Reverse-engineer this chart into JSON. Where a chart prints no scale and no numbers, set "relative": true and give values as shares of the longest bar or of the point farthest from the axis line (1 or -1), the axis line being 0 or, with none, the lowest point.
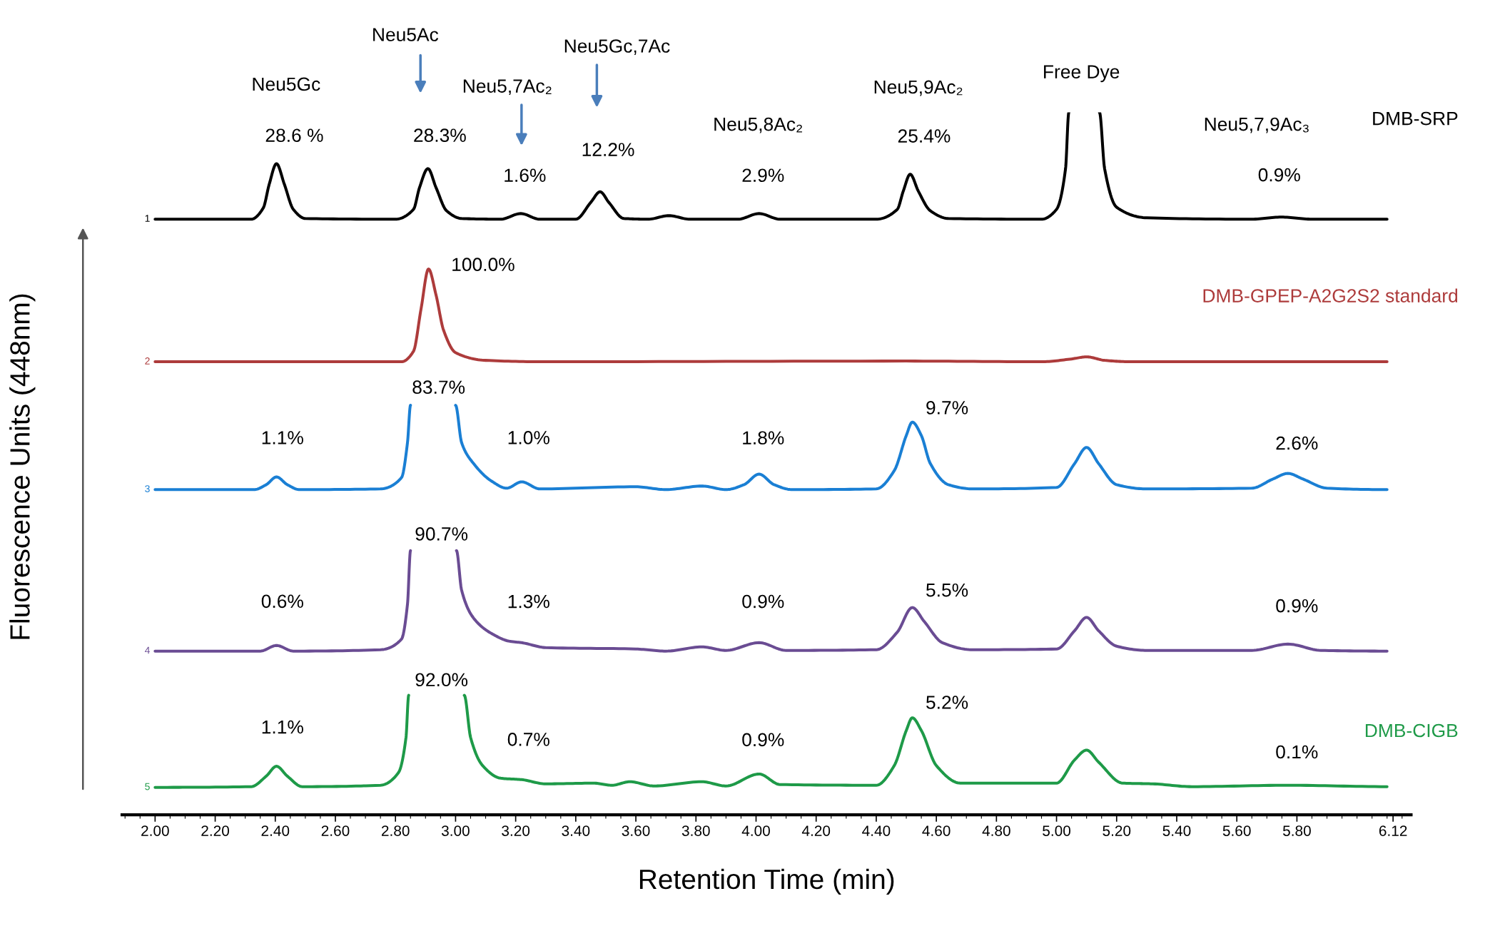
{
  "chart_data": {
    "type": "line",
    "relative": true,
    "xlabel": "Retention Time (min)",
    "ylabel": "Fluorescence Units (448nm)",
    "xlim": [
      1.89,
      6.18
    ],
    "xticks": [
      {
        "value": 2.0,
        "label": "2.00"
      },
      {
        "value": 2.2,
        "label": "2.20"
      },
      {
        "value": 2.4,
        "label": "2.40"
      },
      {
        "value": 2.6,
        "label": "2.60"
      },
      {
        "value": 2.8,
        "label": "2.80"
      },
      {
        "value": 3.0,
        "label": "3.00"
      },
      {
        "value": 3.2,
        "label": "3.20"
      },
      {
        "value": 3.4,
        "label": "3.40"
      },
      {
        "value": 3.6,
        "label": "3.60"
      },
      {
        "value": 3.8,
        "label": "3.80"
      },
      {
        "value": 4.0,
        "label": "4.00"
      },
      {
        "value": 4.2,
        "label": "4.20"
      },
      {
        "value": 4.4,
        "label": "4.40"
      },
      {
        "value": 4.6,
        "label": "4.60"
      },
      {
        "value": 4.8,
        "label": "4.80"
      },
      {
        "value": 5.0,
        "label": "5.00"
      },
      {
        "value": 5.2,
        "label": "5.20"
      },
      {
        "value": 5.4,
        "label": "5.40"
      },
      {
        "value": 5.6,
        "label": "5.60"
      },
      {
        "value": 5.8,
        "label": "5.80"
      },
      6.12
    ],
    "grid": false,
    "marker": "none",
    "line_style": "solid",
    "tick_labels": "x",
    "series": [
      {
        "name": "DMB-SRP",
        "color": "#000000",
        "x": [
          2.0,
          2.32,
          2.36,
          2.38,
          2.404,
          2.43,
          2.46,
          2.5,
          2.8,
          2.86,
          2.88,
          2.908,
          2.935,
          2.97,
          3.02,
          3.15,
          3.217,
          3.28,
          3.4,
          3.45,
          3.481,
          3.51,
          3.56,
          3.64,
          3.71,
          3.78,
          3.94,
          4.01,
          4.08,
          4.4,
          4.47,
          4.49,
          4.513,
          4.54,
          4.58,
          4.64,
          4.95,
          5.0,
          5.03,
          5.041,
          5.09,
          5.143,
          5.16,
          5.2,
          5.3,
          5.65,
          5.748,
          5.85,
          6.1
        ],
        "values": [
          0.848,
          0.848,
          0.864,
          0.898,
          0.927,
          0.898,
          0.862,
          0.849,
          0.848,
          0.862,
          0.893,
          0.92,
          0.893,
          0.86,
          0.849,
          0.848,
          0.856,
          0.848,
          0.848,
          0.872,
          0.887,
          0.872,
          0.849,
          0.848,
          0.853,
          0.848,
          0.848,
          0.856,
          0.848,
          0.848,
          0.862,
          0.888,
          0.912,
          0.888,
          0.86,
          0.849,
          0.848,
          0.862,
          0.92,
          1.0,
          null,
          1.0,
          0.92,
          0.865,
          0.85,
          0.848,
          0.851,
          0.848,
          0.848
        ]
      },
      {
        "name": "DMB-GPEP-A2G2S2 standard",
        "color": "#ad3b3b",
        "x": [
          2.0,
          2.82,
          2.86,
          2.885,
          2.91,
          2.935,
          2.96,
          3.0,
          3.1,
          3.3,
          4.5,
          4.95,
          5.05,
          5.1,
          5.16,
          5.25,
          6.1
        ],
        "values": [
          0.645,
          0.645,
          0.66,
          0.72,
          0.777,
          0.74,
          0.69,
          0.658,
          0.647,
          0.645,
          0.646,
          0.645,
          0.649,
          0.652,
          0.647,
          0.645,
          0.645
        ]
      },
      {
        "color": "#1a7fd4",
        "x": [
          2.0,
          2.33,
          2.37,
          2.404,
          2.44,
          2.48,
          2.75,
          2.82,
          2.84,
          2.85,
          2.93,
          3.0,
          3.02,
          3.06,
          3.12,
          3.17,
          3.22,
          3.28,
          3.6,
          3.7,
          3.82,
          3.9,
          3.96,
          4.01,
          4.06,
          4.12,
          4.4,
          4.46,
          4.5,
          4.52,
          4.55,
          4.58,
          4.64,
          4.72,
          5.0,
          5.06,
          5.1,
          5.14,
          5.2,
          5.3,
          5.65,
          5.72,
          5.77,
          5.82,
          5.9,
          6.1
        ],
        "values": [
          0.463,
          0.463,
          0.47,
          0.481,
          0.47,
          0.463,
          0.464,
          0.48,
          0.53,
          0.583,
          null,
          0.583,
          0.53,
          0.5,
          0.475,
          0.465,
          0.474,
          0.464,
          0.467,
          0.463,
          0.468,
          0.463,
          0.47,
          0.485,
          0.47,
          0.463,
          0.464,
          0.49,
          0.54,
          0.559,
          0.54,
          0.5,
          0.47,
          0.464,
          0.466,
          0.5,
          0.523,
          0.5,
          0.47,
          0.464,
          0.465,
          0.478,
          0.486,
          0.478,
          0.465,
          0.463
        ]
      },
      {
        "color": "#6a4c93",
        "x": [
          2.0,
          2.35,
          2.404,
          2.46,
          2.75,
          2.82,
          2.84,
          2.85,
          2.93,
          3.003,
          3.02,
          3.06,
          3.12,
          3.18,
          3.22,
          3.3,
          3.6,
          3.7,
          3.82,
          3.9,
          4.01,
          4.1,
          4.4,
          4.47,
          4.52,
          4.56,
          4.62,
          4.72,
          5.0,
          5.06,
          5.1,
          5.14,
          5.2,
          5.3,
          5.65,
          5.77,
          5.88,
          6.1
        ],
        "values": [
          0.233,
          0.233,
          0.241,
          0.233,
          0.235,
          0.25,
          0.3,
          0.376,
          null,
          0.376,
          0.32,
          0.28,
          0.258,
          0.247,
          0.245,
          0.238,
          0.236,
          0.233,
          0.239,
          0.234,
          0.245,
          0.234,
          0.235,
          0.26,
          0.295,
          0.275,
          0.245,
          0.235,
          0.236,
          0.262,
          0.281,
          0.262,
          0.24,
          0.234,
          0.234,
          0.243,
          0.234,
          0.233
        ]
      },
      {
        "name": "DMB-CIGB",
        "color": "#1e9a48",
        "x": [
          2.0,
          2.32,
          2.37,
          2.404,
          2.44,
          2.49,
          2.75,
          2.81,
          2.835,
          2.844,
          2.94,
          3.029,
          3.05,
          3.09,
          3.15,
          3.22,
          3.3,
          3.46,
          3.52,
          3.58,
          3.66,
          3.82,
          3.9,
          4.01,
          4.08,
          4.4,
          4.46,
          4.5,
          4.52,
          4.55,
          4.6,
          4.68,
          5.0,
          5.06,
          5.1,
          5.14,
          5.22,
          5.32,
          5.45,
          5.77,
          6.1
        ],
        "values": [
          0.039,
          0.04,
          0.055,
          0.069,
          0.055,
          0.04,
          0.042,
          0.06,
          0.11,
          0.17,
          null,
          0.17,
          0.11,
          0.07,
          0.052,
          0.05,
          0.044,
          0.045,
          0.042,
          0.047,
          0.041,
          0.047,
          0.041,
          0.058,
          0.043,
          0.042,
          0.07,
          0.12,
          0.138,
          0.12,
          0.07,
          0.045,
          0.045,
          0.078,
          0.092,
          0.075,
          0.045,
          0.044,
          0.04,
          0.042,
          0.04
        ]
      }
    ],
    "annotations": [
      "Neu5Gc",
      {
        "text": "28.6 %",
        "x": 2.404,
        "y": 0.927
      },
      "Neu5Ac",
      {
        "text": "28.3%",
        "x": 2.908,
        "y": 0.92
      },
      "Neu5,7Ac₂",
      {
        "text": "1.6%",
        "x": 3.217,
        "y": 0.856
      },
      "Neu5Gc,7Ac",
      {
        "text": "12.2%",
        "x": 3.481,
        "y": 0.887
      },
      "Neu5,8Ac₂",
      {
        "text": "2.9%",
        "x": 4.01,
        "y": 0.856
      },
      "Neu5,9Ac₂",
      {
        "text": "25.4%",
        "x": 4.513,
        "y": 0.912
      },
      "Free Dye",
      "Neu5,7,9Ac₃",
      {
        "text": "0.9%",
        "x": 5.748,
        "y": 0.851
      },
      {
        "text": "100.0%",
        "x": 2.91,
        "y": 0.777
      },
      {
        "text": "1.1%",
        "x": 2.404,
        "y": 0.481
      },
      "83.7%",
      {
        "text": "1.0%",
        "x": 3.22,
        "y": 0.474
      },
      {
        "text": "1.8%",
        "x": 4.01,
        "y": 0.485
      },
      {
        "text": "9.7%",
        "x": 4.52,
        "y": 0.559
      },
      {
        "text": "2.6%",
        "x": 5.77,
        "y": 0.486
      },
      {
        "text": "0.6%",
        "x": 2.404,
        "y": 0.241
      },
      "90.7%",
      {
        "text": "1.3%",
        "x": 3.22,
        "y": 0.245
      },
      {
        "text": "0.9%",
        "x": 4.01,
        "y": 0.245
      },
      {
        "text": "5.5%",
        "x": 4.52,
        "y": 0.295
      },
      {
        "text": "0.9%",
        "x": 5.77,
        "y": 0.243
      },
      {
        "text": "1.1%",
        "x": 2.404,
        "y": 0.069
      },
      "92.0%",
      {
        "text": "0.7%",
        "x": 3.22,
        "y": 0.05
      },
      {
        "text": "0.9%",
        "x": 4.01,
        "y": 0.058
      },
      {
        "text": "5.2%",
        "x": 4.52,
        "y": 0.138
      },
      {
        "text": "0.1%",
        "x": 5.77,
        "y": 0.042
      },
      {
        "text": "1",
        "x": 2.0,
        "y": 0.848
      },
      {
        "text": "2",
        "x": 2.0,
        "y": 0.645
      },
      {
        "text": "3",
        "x": 2.0,
        "y": 0.463
      },
      {
        "text": "4",
        "x": 2.0,
        "y": 0.233
      },
      {
        "text": "5",
        "x": 2.0,
        "y": 0.039
      }
    ]
  }
}
